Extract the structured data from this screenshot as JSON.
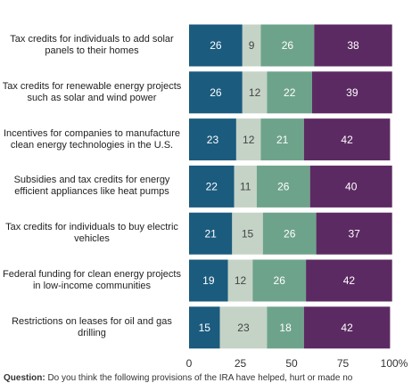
{
  "chart_data": {
    "type": "stacked-bar-horizontal",
    "categories": [
      "Tax credits for individuals to add solar panels to their homes",
      "Tax credits for renewable energy projects such as solar and wind power",
      "Incentives for companies to manufacture clean energy technologies in the U.S.",
      "Subsidies and tax credits for energy efficient appliances like heat pumps",
      "Tax credits for individuals to buy electric vehicles",
      "Federal funding for clean energy projects in low-income communities",
      "Restrictions on leases for oil and gas drilling"
    ],
    "series": [
      {
        "color": "#1b5b7e",
        "values": [
          26,
          26,
          23,
          22,
          21,
          19,
          15
        ]
      },
      {
        "color": "#c4d3c6",
        "values": [
          9,
          12,
          12,
          11,
          15,
          12,
          23
        ]
      },
      {
        "color": "#6ea38b",
        "values": [
          26,
          22,
          21,
          26,
          26,
          26,
          18
        ]
      },
      {
        "color": "#5c2a62",
        "values": [
          38,
          39,
          42,
          40,
          37,
          42,
          42
        ]
      }
    ],
    "xlim": [
      0,
      100
    ],
    "xticks": [
      0,
      25,
      50,
      75,
      {
        "value": 100,
        "label": "100%"
      }
    ],
    "note_label": "Question:",
    "note": "Do you think the following provisions of the IRA have helped, hurt or made no"
  }
}
